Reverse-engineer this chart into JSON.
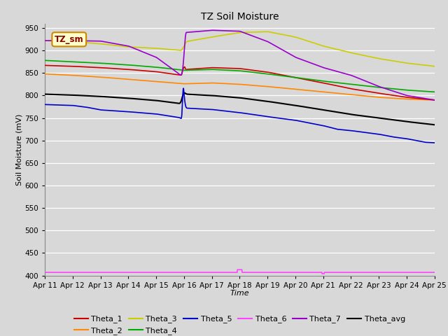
{
  "title": "TZ Soil Moisture",
  "xlabel": "Time",
  "ylabel": "Soil Moisture (mV)",
  "ylim": [
    400,
    960
  ],
  "yticks": [
    400,
    450,
    500,
    550,
    600,
    650,
    700,
    750,
    800,
    850,
    900,
    950
  ],
  "background_color": "#d8d8d8",
  "legend_label": "TZ_sm",
  "series": {
    "Theta_1": {
      "color": "#cc0000",
      "lw": 1.2
    },
    "Theta_2": {
      "color": "#ff8800",
      "lw": 1.2
    },
    "Theta_3": {
      "color": "#cccc00",
      "lw": 1.2
    },
    "Theta_4": {
      "color": "#00aa00",
      "lw": 1.2
    },
    "Theta_5": {
      "color": "#0000cc",
      "lw": 1.2
    },
    "Theta_6": {
      "color": "#ff44ff",
      "lw": 1.2
    },
    "Theta_7": {
      "color": "#9900cc",
      "lw": 1.2
    },
    "Theta_avg": {
      "color": "#000000",
      "lw": 1.5
    }
  },
  "x_tick_positions": [
    0,
    24,
    48,
    72,
    96,
    120,
    144,
    168,
    192,
    216,
    240,
    264,
    288,
    312,
    336
  ],
  "x_tick_labels": [
    "Apr 11",
    "Apr 12",
    "Apr 13",
    "Apr 14",
    "Apr 15",
    "Apr 16",
    "Apr 17",
    "Apr 18",
    "Apr 19",
    "Apr 20",
    "Apr 21",
    "Apr 22",
    "Apr 23",
    "Apr 24",
    "Apr 25"
  ]
}
